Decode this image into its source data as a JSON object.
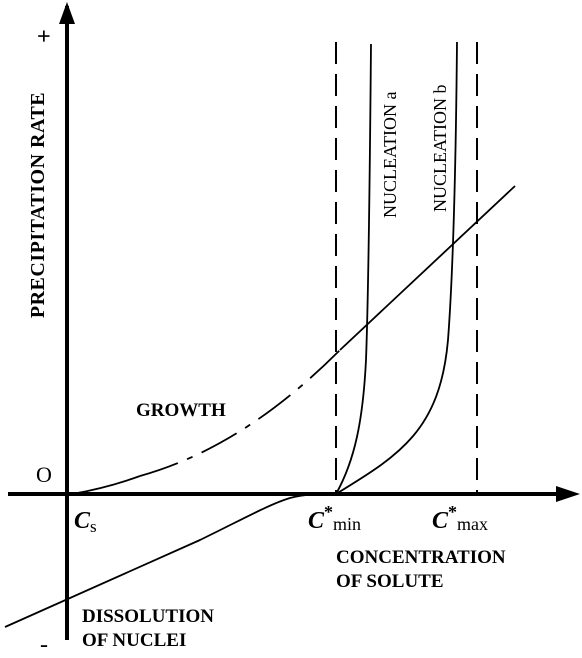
{
  "y_axis": {
    "label": "PRECIPITATION RATE",
    "plus_sign": "+",
    "minus_sign": "-",
    "origin": "O"
  },
  "x_axis": {
    "label_line1": "CONCENTRATION",
    "label_line2": "OF SOLUTE",
    "cs_main": "C",
    "cs_sub": "s",
    "cmin_main": "C",
    "cmin_sup": "*",
    "cmin_sub": "min",
    "cmax_main": "C",
    "cmax_sup": "*",
    "cmax_sub": "max"
  },
  "curves": {
    "growth": "GROWTH",
    "nucleation_a": "NUCLEATION a",
    "nucleation_b": "NUCLEATION b",
    "dissolution_line1": "DISSOLUTION",
    "dissolution_line2": "OF NUCLEI"
  },
  "colors": {
    "ink": "#000000",
    "background": "#ffffff"
  }
}
